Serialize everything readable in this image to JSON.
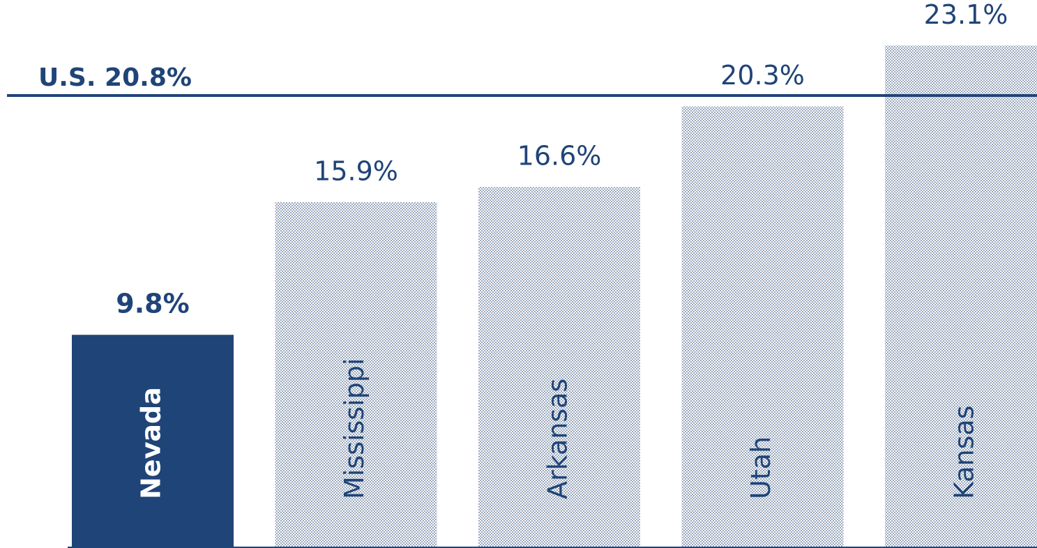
{
  "chart_data": {
    "type": "bar",
    "categories": [
      "Nevada",
      "Mississippi",
      "Arkansas",
      "Utah",
      "Kansas"
    ],
    "values": [
      9.8,
      15.9,
      16.6,
      20.3,
      23.1
    ],
    "value_labels": [
      "9.8%",
      "15.9%",
      "16.6%",
      "20.3%",
      "23.1%"
    ],
    "color": "#9aa8bd",
    "highlight": "Nevada",
    "highlight_color": "#1f4478",
    "ylim": [
      0,
      25
    ],
    "reference_line": {
      "value": 20.8,
      "label": "U.S. 20.8%"
    }
  }
}
